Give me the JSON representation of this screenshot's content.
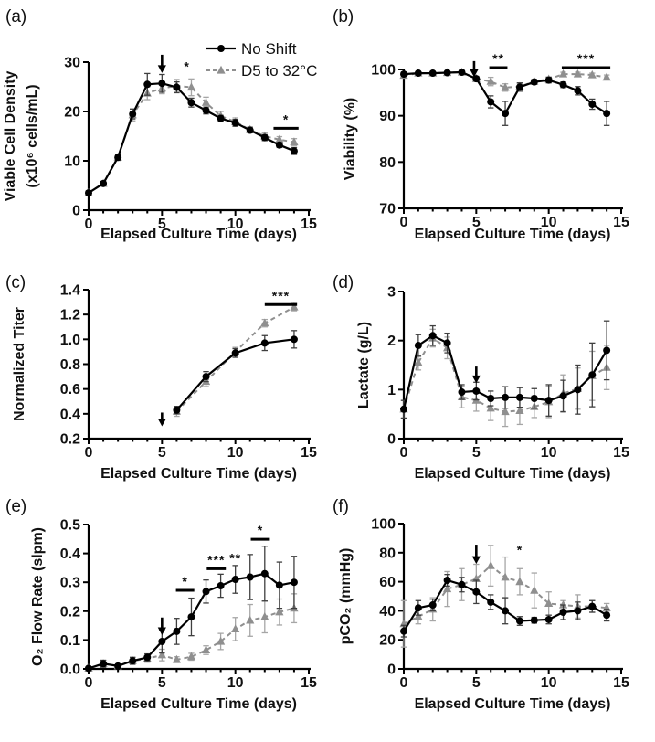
{
  "figure": {
    "title": "",
    "xlabel": "Elapsed Culture Time (days)",
    "colors": {
      "no_shift": "#000000",
      "no_shift_err": "#3f3f3f",
      "shift": "#8f8f8f",
      "shift_err": "#a6a6a6",
      "sig_gray": "#7c7c7c",
      "axis": "#000000"
    },
    "legend": {
      "items": [
        "No Shift",
        "D5 to 32°C"
      ]
    }
  },
  "chart_data": [
    {
      "id": "a",
      "panel": "(a)",
      "type": "line",
      "xlabel": "Elapsed Culture Time (days)",
      "ylabel": [
        "Viable Cell Density",
        "(x10⁶ cells/mL)"
      ],
      "xlim": [
        0,
        15
      ],
      "xticks": [
        0,
        5,
        10,
        15
      ],
      "xminor": 1,
      "ylim": [
        0,
        30
      ],
      "yticks": [
        0,
        10,
        20,
        30
      ],
      "ytick_labels": [
        "0",
        "10",
        "20",
        "30"
      ],
      "x": [
        0,
        1,
        2,
        3,
        4,
        5,
        6,
        7,
        8,
        9,
        10,
        11,
        12,
        13,
        14
      ],
      "series": [
        {
          "key": "no_shift",
          "name": "No Shift",
          "marker": "circle",
          "dash": "solid",
          "values": [
            3.5,
            5.4,
            10.7,
            19.5,
            25.5,
            25.7,
            24.9,
            21.8,
            20.2,
            18.6,
            17.7,
            16.2,
            14.7,
            13.2,
            12.0
          ],
          "errors": [
            0.4,
            0.4,
            0.6,
            1.0,
            2.2,
            1.8,
            1.1,
            0.9,
            0.7,
            0.6,
            0.7,
            0.5,
            0.6,
            0.5,
            0.7
          ]
        },
        {
          "key": "shift",
          "name": "D5 to 32°C",
          "marker": "triangle",
          "dash": "dashed",
          "values": [
            3.5,
            5.4,
            10.7,
            19.3,
            23.7,
            24.7,
            25.2,
            24.9,
            21.8,
            19.1,
            17.9,
            16.3,
            15.0,
            14.3,
            13.8
          ],
          "errors": [
            0.4,
            0.4,
            0.6,
            1.2,
            1.3,
            1.1,
            1.3,
            1.7,
            1.1,
            0.9,
            0.8,
            0.6,
            0.7,
            0.6,
            0.7
          ]
        }
      ],
      "annotations": {
        "arrow": {
          "x": 5,
          "from": 31.5,
          "to": 29.2
        },
        "sig": [
          {
            "text": "*",
            "x": 6.7,
            "y": 28.2,
            "color": "gray"
          },
          {
            "text": "*",
            "bar": [
              12.6,
              14.3
            ],
            "y": 16.6
          }
        ]
      },
      "legend": true
    },
    {
      "id": "b",
      "panel": "(b)",
      "type": "line",
      "xlabel": "Elapsed Culture Time (days)",
      "ylabel": "Viability (%)",
      "xlim": [
        0,
        15
      ],
      "xticks": [
        0,
        5,
        10,
        15
      ],
      "xminor": 1,
      "ylim": [
        70,
        100
      ],
      "yticks": [
        70,
        80,
        90,
        100
      ],
      "ytick_labels": [
        "70",
        "80",
        "90",
        "100"
      ],
      "x": [
        0,
        1,
        2,
        3,
        4,
        5,
        6,
        7,
        8,
        9,
        10,
        11,
        12,
        13,
        14
      ],
      "series": [
        {
          "key": "no_shift",
          "name": "No Shift",
          "marker": "circle",
          "dash": "solid",
          "values": [
            99.0,
            99.2,
            99.2,
            99.3,
            99.4,
            98.0,
            93.0,
            90.5,
            96.2,
            97.3,
            97.7,
            96.7,
            95.4,
            92.5,
            90.5
          ],
          "errors": [
            0.4,
            0.3,
            0.3,
            0.3,
            0.4,
            0.5,
            1.3,
            2.6,
            0.9,
            0.5,
            0.6,
            0.6,
            0.9,
            1.1,
            2.6
          ]
        },
        {
          "key": "shift",
          "name": "D5 to 32°C",
          "marker": "triangle",
          "dash": "dashed",
          "values": [
            98.7,
            99.2,
            99.2,
            99.3,
            99.4,
            98.0,
            97.4,
            96.1,
            96.3,
            97.4,
            97.9,
            99.0,
            99.0,
            98.8,
            98.3
          ],
          "errors": [
            0.5,
            0.3,
            0.3,
            0.3,
            0.4,
            0.5,
            0.9,
            0.8,
            0.7,
            0.5,
            0.5,
            0.4,
            0.4,
            0.4,
            0.5
          ]
        }
      ],
      "annotations": {
        "arrow": {
          "x": 4.85,
          "from": 101.8,
          "to": 99.8
        },
        "sig": [
          {
            "text": "**",
            "bar": [
              5.9,
              7.15
            ],
            "y": 100.4
          },
          {
            "text": "***",
            "bar": [
              10.9,
              14.25
            ],
            "y": 100.4
          }
        ]
      },
      "legend": false
    },
    {
      "id": "c",
      "panel": "(c)",
      "type": "line",
      "xlabel": "Elapsed Culture Time (days)",
      "ylabel": "Normalized Titer",
      "xlim": [
        0,
        15
      ],
      "xticks": [
        0,
        5,
        10,
        15
      ],
      "xminor": 1,
      "ylim": [
        0.2,
        1.4
      ],
      "yticks": [
        0.2,
        0.4,
        0.6,
        0.8,
        1.0,
        1.2,
        1.4
      ],
      "ytick_labels": [
        "0.2",
        "0.4",
        "0.6",
        "0.8",
        "1.0",
        "1.2",
        "1.4"
      ],
      "x": [
        6,
        8,
        10,
        12,
        14
      ],
      "series": [
        {
          "key": "no_shift",
          "name": "No Shift",
          "marker": "circle",
          "dash": "solid",
          "values": [
            0.43,
            0.7,
            0.89,
            0.97,
            1.0
          ],
          "errors": [
            0.03,
            0.04,
            0.035,
            0.06,
            0.07
          ]
        },
        {
          "key": "shift",
          "name": "D5 to 32°C",
          "marker": "triangle",
          "dash": "dashed",
          "values": [
            0.42,
            0.66,
            0.9,
            1.13,
            1.26
          ],
          "errors": [
            0.04,
            0.04,
            0.035,
            0.03,
            0.03
          ]
        }
      ],
      "annotations": {
        "arrow": {
          "x": 5,
          "from": 0.41,
          "to": 0.355
        },
        "sig": [
          {
            "text": "***",
            "bar": [
              12.0,
              14.2
            ],
            "y": 1.28
          }
        ]
      },
      "legend": false
    },
    {
      "id": "d",
      "panel": "(d)",
      "type": "line",
      "xlabel": "Elapsed Culture Time (days)",
      "ylabel": "Lactate (g/L)",
      "xlim": [
        0,
        15
      ],
      "xticks": [
        0,
        5,
        10,
        15
      ],
      "xminor": 1,
      "ylim": [
        0,
        3
      ],
      "yticks": [
        0,
        1,
        2,
        3
      ],
      "ytick_labels": [
        "0",
        "1",
        "2",
        "3"
      ],
      "x": [
        0,
        1,
        2,
        3,
        4,
        5,
        6,
        7,
        8,
        9,
        10,
        11,
        12,
        13,
        14
      ],
      "series": [
        {
          "key": "no_shift",
          "name": "No Shift",
          "marker": "circle",
          "dash": "solid",
          "values": [
            0.6,
            1.9,
            2.1,
            1.95,
            0.95,
            0.97,
            0.82,
            0.84,
            0.84,
            0.82,
            0.78,
            0.87,
            1.0,
            1.3,
            1.8
          ],
          "errors": [
            0.18,
            0.22,
            0.2,
            0.2,
            0.15,
            0.18,
            0.15,
            0.22,
            0.2,
            0.2,
            0.32,
            0.32,
            0.5,
            0.65,
            0.6
          ]
        },
        {
          "key": "shift",
          "name": "D5 to 32°C",
          "marker": "triangle",
          "dash": "dashed",
          "values": [
            0.6,
            1.55,
            2.05,
            1.85,
            0.85,
            0.78,
            0.62,
            0.55,
            0.57,
            0.65,
            0.75,
            0.92,
            1.02,
            1.28,
            1.45
          ],
          "errors": [
            0.18,
            0.15,
            0.18,
            0.22,
            0.22,
            0.22,
            0.25,
            0.3,
            0.28,
            0.22,
            0.32,
            0.38,
            0.42,
            0.5,
            0.45
          ]
        }
      ],
      "annotations": {
        "arrow": {
          "x": 5,
          "from": 1.47,
          "to": 1.27
        },
        "sig": []
      },
      "legend": false
    },
    {
      "id": "e",
      "panel": "(e)",
      "type": "line",
      "xlabel": "Elapsed Culture Time (days)",
      "ylabel": "O₂ Flow Rate (slpm)",
      "xlim": [
        0,
        15
      ],
      "xticks": [
        0,
        5,
        10,
        15
      ],
      "xminor": 1,
      "ylim": [
        0,
        0.5
      ],
      "yticks": [
        0,
        0.1,
        0.2,
        0.3,
        0.4,
        0.5
      ],
      "ytick_labels": [
        "0.0",
        "0.1",
        "0.2",
        "0.3",
        "0.4",
        "0.5"
      ],
      "x": [
        0,
        1,
        2,
        3,
        4,
        5,
        6,
        7,
        8,
        9,
        10,
        11,
        12,
        13,
        14
      ],
      "series": [
        {
          "key": "no_shift",
          "name": "No Shift",
          "marker": "circle",
          "dash": "solid",
          "values": [
            0.002,
            0.018,
            0.01,
            0.028,
            0.04,
            0.095,
            0.13,
            0.18,
            0.268,
            0.288,
            0.31,
            0.318,
            0.33,
            0.29,
            0.3
          ],
          "errors": [
            0.004,
            0.012,
            0.006,
            0.012,
            0.012,
            0.04,
            0.045,
            0.065,
            0.04,
            0.04,
            0.048,
            0.078,
            0.095,
            0.08,
            0.09
          ]
        },
        {
          "key": "shift",
          "name": "D5 to 32°C",
          "marker": "triangle",
          "dash": "dashed",
          "values": [
            0.002,
            0.018,
            0.01,
            0.028,
            0.035,
            0.048,
            0.032,
            0.042,
            0.065,
            0.095,
            0.138,
            0.168,
            0.18,
            0.197,
            0.21
          ],
          "errors": [
            0.004,
            0.012,
            0.006,
            0.012,
            0.012,
            0.02,
            0.01,
            0.012,
            0.015,
            0.028,
            0.04,
            0.055,
            0.055,
            0.045,
            0.05
          ]
        }
      ],
      "annotations": {
        "arrow": {
          "x": 5,
          "from": 0.178,
          "to": 0.141
        },
        "sig": [
          {
            "text": "*",
            "bar": [
              5.95,
              7.2
            ],
            "y": 0.272
          },
          {
            "text": "***",
            "bar": [
              8.05,
              9.35
            ],
            "y": 0.347
          },
          {
            "text": "**",
            "x": 10,
            "y": 0.368
          },
          {
            "text": "*",
            "bar": [
              11.05,
              12.35
            ],
            "y": 0.449
          }
        ]
      },
      "legend": false
    },
    {
      "id": "f",
      "panel": "(f)",
      "type": "line",
      "xlabel": "Elapsed Culture Time (days)",
      "ylabel": "pCO₂ (mmHg)",
      "xlim": [
        0,
        15
      ],
      "xticks": [
        0,
        5,
        10,
        15
      ],
      "xminor": 1,
      "ylim": [
        0,
        100
      ],
      "yticks": [
        0,
        20,
        40,
        60,
        80,
        100
      ],
      "ytick_labels": [
        "0",
        "20",
        "40",
        "60",
        "80",
        "100"
      ],
      "x": [
        0,
        1,
        2,
        3,
        4,
        5,
        6,
        7,
        8,
        9,
        10,
        11,
        12,
        13,
        14
      ],
      "series": [
        {
          "key": "no_shift",
          "name": "No Shift",
          "marker": "circle",
          "dash": "solid",
          "values": [
            26,
            42,
            44,
            61,
            58,
            53,
            46,
            40,
            33,
            33.5,
            34,
            39,
            40,
            43,
            37
          ],
          "errors": [
            4,
            5,
            4,
            4,
            5,
            8,
            5,
            9,
            3,
            2,
            3,
            5,
            6,
            4,
            4
          ]
        },
        {
          "key": "shift",
          "name": "D5 to 32°C",
          "marker": "triangle",
          "dash": "dashed",
          "values": [
            31,
            36,
            41,
            55,
            58,
            62,
            71,
            63,
            60,
            54,
            45,
            44,
            43,
            43,
            42
          ],
          "errors": [
            16,
            5,
            8,
            12,
            11,
            10,
            14,
            14,
            9,
            12,
            8,
            3,
            8,
            4,
            3
          ]
        }
      ],
      "annotations": {
        "arrow": {
          "x": 5,
          "from": 85.5,
          "to": 77
        },
        "sig": [
          {
            "text": "*",
            "x": 8,
            "y": 79,
            "color": "gray"
          }
        ]
      },
      "legend": false
    }
  ]
}
